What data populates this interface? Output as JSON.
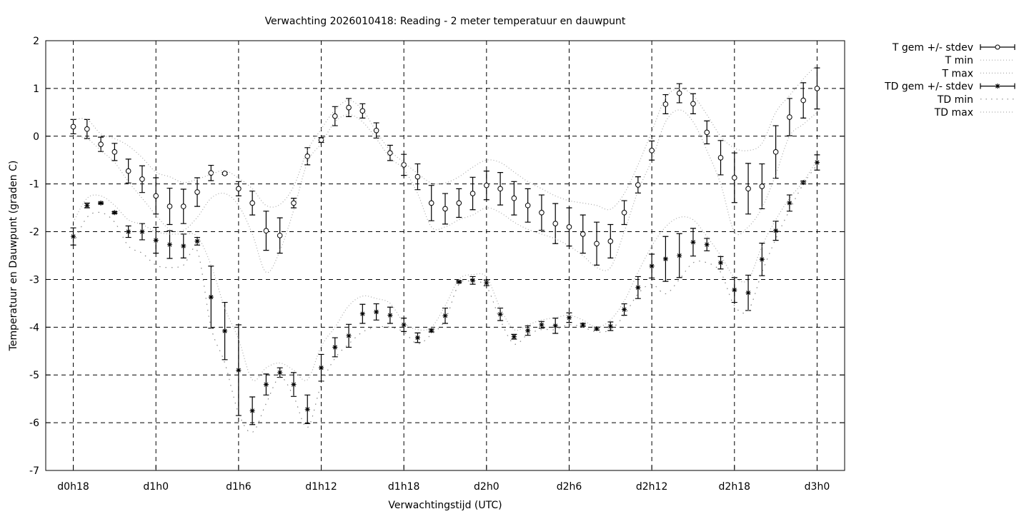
{
  "chart_data": {
    "type": "line",
    "title": "Verwachting 2026010418: Reading - 2 meter temperatuur en dauwpunt",
    "xlabel": "Verwachtingstijd (UTC)",
    "ylabel": "Temperatuur en Dauwpunt (graden C)",
    "xlim": [
      16,
      74
    ],
    "ylim": [
      -7,
      2
    ],
    "grid": true,
    "legend_position": "outside-right",
    "x_ticks": [
      {
        "x": 18,
        "label": "d0h18"
      },
      {
        "x": 24,
        "label": "d1h0"
      },
      {
        "x": 30,
        "label": "d1h6"
      },
      {
        "x": 36,
        "label": "d1h12"
      },
      {
        "x": 42,
        "label": "d1h18"
      },
      {
        "x": 48,
        "label": "d2h0"
      },
      {
        "x": 54,
        "label": "d2h6"
      },
      {
        "x": 60,
        "label": "d2h12"
      },
      {
        "x": 66,
        "label": "d2h18"
      },
      {
        "x": 72,
        "label": "d3h0"
      }
    ],
    "y_ticks": [
      "2",
      "1",
      "0",
      "-1",
      "-2",
      "-3",
      "-4",
      "-5",
      "-6",
      "-7"
    ],
    "x": [
      18,
      19,
      20,
      21,
      22,
      23,
      24,
      25,
      26,
      27,
      28,
      29,
      30,
      31,
      32,
      33,
      34,
      35,
      36,
      37,
      38,
      39,
      40,
      41,
      42,
      43,
      44,
      45,
      46,
      47,
      48,
      49,
      50,
      51,
      52,
      53,
      54,
      55,
      56,
      57,
      58,
      59,
      60,
      61,
      62,
      63,
      64,
      65,
      66,
      67,
      68,
      69,
      70,
      71,
      72
    ],
    "series": [
      {
        "name": "T gem +/- stdev",
        "style": "errorbars-circle",
        "color": "#000000",
        "values": [
          0.2,
          0.15,
          -0.17,
          -0.33,
          -0.73,
          -0.9,
          -1.25,
          -1.47,
          -1.47,
          -1.17,
          -0.77,
          -0.78,
          -1.1,
          -1.4,
          -1.98,
          -2.08,
          -1.4,
          -0.42,
          -0.08,
          0.42,
          0.6,
          0.53,
          0.12,
          -0.35,
          -0.6,
          -0.85,
          -1.4,
          -1.52,
          -1.4,
          -1.2,
          -1.03,
          -1.1,
          -1.3,
          -1.45,
          -1.6,
          -1.83,
          -1.9,
          -2.05,
          -2.25,
          -2.2,
          -1.6,
          -1.02,
          -0.3,
          0.67,
          0.9,
          0.68,
          0.08,
          -0.45,
          -0.87,
          -1.1,
          -1.05,
          -0.33,
          0.4,
          0.75,
          1.0
        ],
        "stdev": [
          0.15,
          0.2,
          0.15,
          0.18,
          0.25,
          0.28,
          0.38,
          0.38,
          0.36,
          0.3,
          0.16,
          0.02,
          0.15,
          0.25,
          0.41,
          0.37,
          0.1,
          0.18,
          0.05,
          0.2,
          0.19,
          0.15,
          0.16,
          0.16,
          0.22,
          0.27,
          0.37,
          0.32,
          0.3,
          0.34,
          0.3,
          0.34,
          0.35,
          0.35,
          0.37,
          0.42,
          0.4,
          0.4,
          0.45,
          0.35,
          0.25,
          0.17,
          0.2,
          0.2,
          0.2,
          0.21,
          0.24,
          0.36,
          0.52,
          0.53,
          0.47,
          0.55,
          0.39,
          0.37,
          0.43
        ]
      },
      {
        "name": "T min",
        "style": "dotted",
        "color": "#aaaaaa",
        "values": [
          0.0,
          -0.05,
          -0.3,
          -0.55,
          -0.95,
          -1.3,
          -1.65,
          -1.95,
          -1.97,
          -1.7,
          -1.3,
          -1.2,
          -1.45,
          -2.05,
          -2.85,
          -2.4,
          -1.55,
          -0.55,
          -0.15,
          0.3,
          0.45,
          0.3,
          -0.05,
          -0.45,
          -0.7,
          -1.2,
          -1.9,
          -1.9,
          -1.75,
          -1.65,
          -1.5,
          -1.6,
          -1.8,
          -1.95,
          -2.05,
          -2.15,
          -2.3,
          -2.5,
          -2.75,
          -2.75,
          -2.0,
          -1.15,
          -0.5,
          0.3,
          0.55,
          0.3,
          -0.3,
          -1.0,
          -2.0,
          -1.9,
          -1.5,
          -0.8,
          0.0,
          0.25,
          0.5
        ]
      },
      {
        "name": "T max",
        "style": "dotted",
        "color": "#aaaaaa",
        "values": [
          0.35,
          0.35,
          0.05,
          -0.05,
          -0.2,
          -0.45,
          -0.75,
          -0.85,
          -0.97,
          -0.9,
          -0.8,
          -0.72,
          -0.88,
          -1.1,
          -1.45,
          -1.43,
          -1.05,
          -0.3,
          0.15,
          0.55,
          0.75,
          0.55,
          0.1,
          -0.3,
          -0.55,
          -0.78,
          -0.98,
          -0.98,
          -0.85,
          -0.65,
          -0.5,
          -0.55,
          -0.75,
          -0.95,
          -1.1,
          -1.25,
          -1.35,
          -1.4,
          -1.45,
          -1.53,
          -1.2,
          -0.6,
          0.1,
          0.8,
          1.0,
          0.85,
          0.45,
          0.0,
          -0.25,
          -0.3,
          -0.15,
          0.5,
          0.85,
          1.2,
          1.5
        ]
      },
      {
        "name": "TD gem +/- stdev",
        "style": "errorbars-star",
        "color": "#000000",
        "values": [
          -2.1,
          -1.45,
          -1.4,
          -1.6,
          -2.0,
          -2.0,
          -2.18,
          -2.27,
          -2.3,
          -2.2,
          -3.37,
          -4.08,
          -4.9,
          -5.75,
          -5.2,
          -4.95,
          -5.2,
          -5.72,
          -4.85,
          -4.42,
          -4.18,
          -3.72,
          -3.68,
          -3.75,
          -3.95,
          -4.22,
          -4.07,
          -3.76,
          -3.05,
          -3.02,
          -3.07,
          -3.73,
          -4.2,
          -4.07,
          -3.95,
          -3.97,
          -3.8,
          -3.95,
          -4.03,
          -3.98,
          -3.63,
          -3.17,
          -2.72,
          -2.57,
          -2.5,
          -2.22,
          -2.27,
          -2.65,
          -3.22,
          -3.28,
          -2.58,
          -1.98,
          -1.4,
          -0.97,
          -0.55
        ],
        "stdev": [
          0.18,
          0.05,
          0.02,
          0.02,
          0.12,
          0.17,
          0.27,
          0.29,
          0.25,
          0.08,
          0.65,
          0.6,
          0.95,
          0.29,
          0.22,
          0.1,
          0.25,
          0.3,
          0.28,
          0.2,
          0.24,
          0.2,
          0.17,
          0.17,
          0.14,
          0.1,
          0.03,
          0.16,
          0.02,
          0.08,
          0.06,
          0.13,
          0.05,
          0.1,
          0.07,
          0.16,
          0.1,
          0.03,
          0.03,
          0.09,
          0.12,
          0.23,
          0.25,
          0.47,
          0.46,
          0.29,
          0.13,
          0.13,
          0.26,
          0.37,
          0.34,
          0.2,
          0.17,
          0.03,
          0.16
        ]
      },
      {
        "name": "TD min",
        "style": "dotted-sparse",
        "color": "#888888",
        "values": [
          -2.25,
          -1.7,
          -1.6,
          -1.8,
          -2.3,
          -2.45,
          -2.7,
          -2.75,
          -2.7,
          -2.4,
          -4.0,
          -4.75,
          -5.8,
          -6.2,
          -5.6,
          -5.05,
          -5.45,
          -6.1,
          -5.2,
          -4.65,
          -4.35,
          -4.1,
          -4.0,
          -4.0,
          -4.1,
          -4.35,
          -4.15,
          -3.85,
          -3.1,
          -3.05,
          -3.15,
          -3.85,
          -4.35,
          -4.15,
          -4.05,
          -4.05,
          -3.95,
          -4.0,
          -4.1,
          -4.05,
          -3.75,
          -3.3,
          -3.1,
          -3.3,
          -3.0,
          -2.65,
          -2.65,
          -2.85,
          -3.55,
          -3.65,
          -2.85,
          -2.15,
          -1.55,
          -1.0,
          -0.6
        ]
      },
      {
        "name": "TD max",
        "style": "dotted",
        "color": "#aaaaaa",
        "values": [
          -1.8,
          -1.3,
          -1.25,
          -1.45,
          -1.75,
          -1.85,
          -2.0,
          -2.05,
          -2.05,
          -2.1,
          -2.7,
          -3.6,
          -4.25,
          -5.1,
          -4.85,
          -4.75,
          -4.9,
          -5.1,
          -4.4,
          -4.0,
          -3.55,
          -3.35,
          -3.4,
          -3.5,
          -3.9,
          -4.05,
          -4.0,
          -3.55,
          -3.0,
          -2.9,
          -2.95,
          -3.6,
          -4.05,
          -3.95,
          -3.85,
          -3.8,
          -3.75,
          -3.85,
          -4.0,
          -3.85,
          -3.45,
          -2.85,
          -2.3,
          -1.9,
          -1.7,
          -1.75,
          -2.1,
          -2.5,
          -2.95,
          -3.0,
          -2.3,
          -1.75,
          -1.3,
          -0.95,
          -0.5
        ]
      }
    ]
  }
}
